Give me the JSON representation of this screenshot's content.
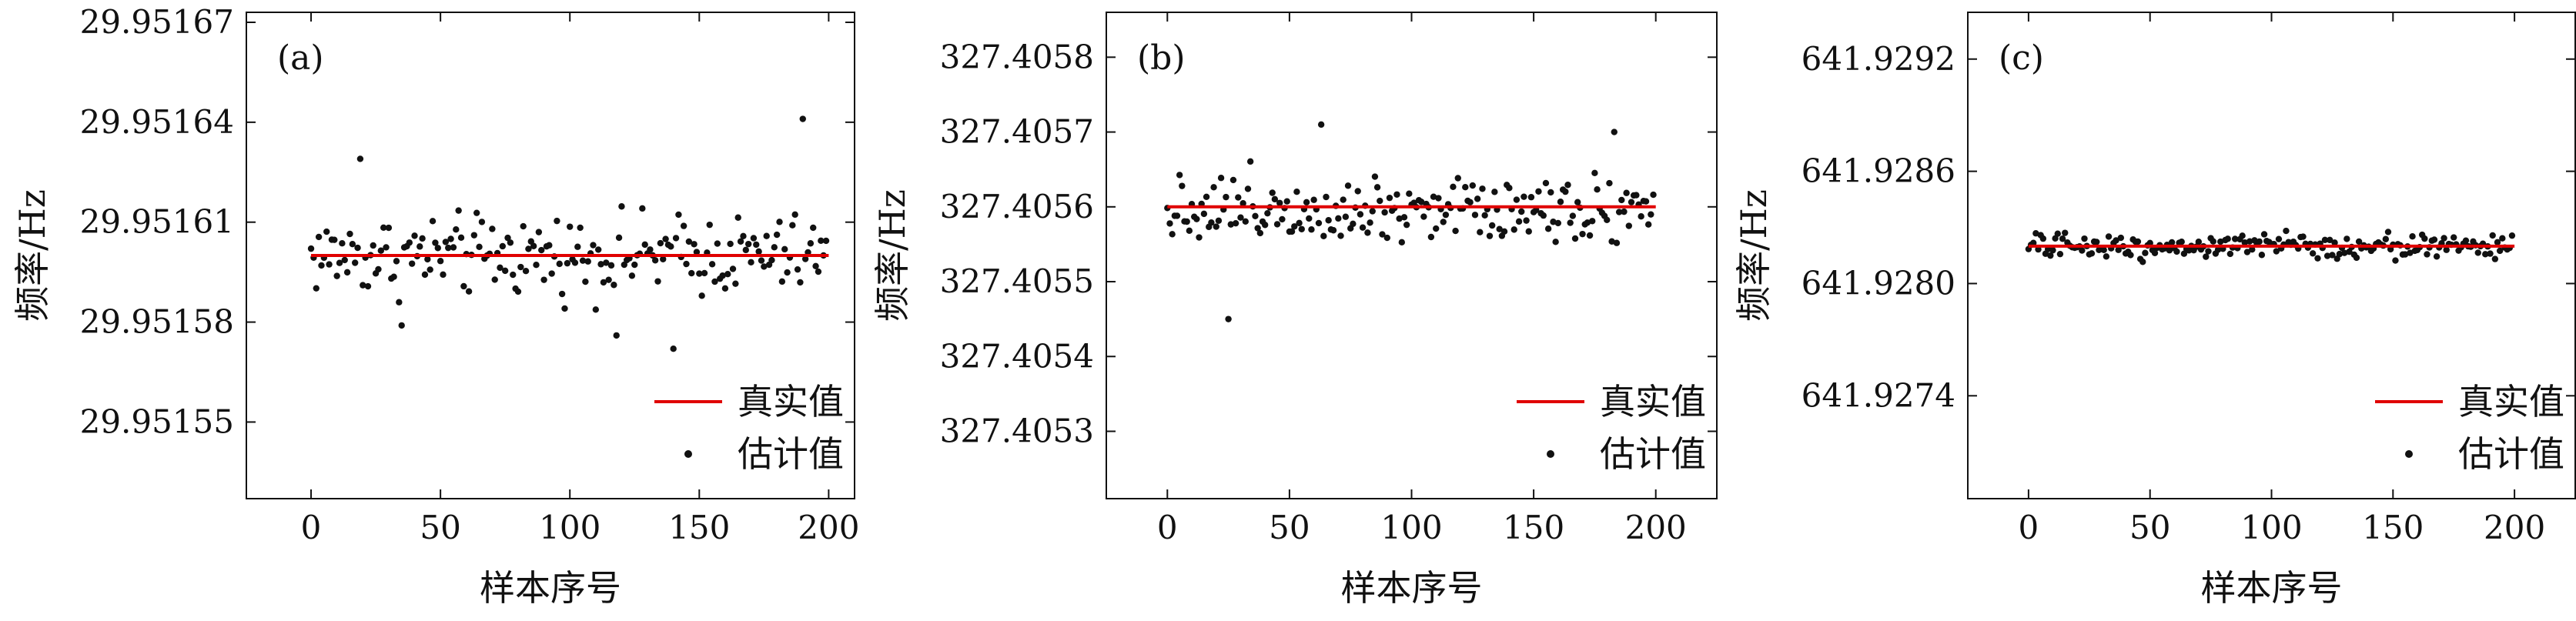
{
  "figure": {
    "xlabel": "样本序号",
    "ylabel": "频率/Hz",
    "legend": {
      "true_label": "真实值",
      "est_label": "估计值",
      "position": "lower-right"
    },
    "colors": {
      "true_line": "#e00000",
      "points": "#111111",
      "axes": "#111111"
    }
  },
  "chart_data": [
    {
      "type": "scatter",
      "panel_label": "(a)",
      "xlabel": "样本序号",
      "ylabel": "频率/Hz",
      "xlim": [
        -25,
        210
      ],
      "ylim": [
        29.951527,
        29.951673
      ],
      "xticks": [
        0,
        50,
        100,
        150,
        200
      ],
      "yticks": [
        29.95155,
        29.95158,
        29.95161,
        29.95164,
        29.95167
      ],
      "ytick_labels": [
        "29.95155",
        "29.95158",
        "29.95161",
        "29.95164",
        "29.95167"
      ],
      "true_value": 29.9516,
      "true_x_range": [
        0,
        200
      ],
      "spread": 1.8e-05,
      "outliers": [
        [
          190,
          29.951641
        ],
        [
          19,
          29.951629
        ],
        [
          140,
          29.951572
        ],
        [
          118,
          29.951576
        ],
        [
          35,
          29.951579
        ]
      ],
      "series": [
        {
          "name": "真实值",
          "kind": "line"
        },
        {
          "name": "估计值",
          "kind": "points",
          "count": 200
        }
      ],
      "legend": "lower-right",
      "grid": false
    },
    {
      "type": "scatter",
      "panel_label": "(b)",
      "xlabel": "样本序号",
      "ylabel": "频率/Hz",
      "xlim": [
        -25,
        225
      ],
      "ylim": [
        327.40521,
        327.40586
      ],
      "xticks": [
        0,
        50,
        100,
        150,
        200
      ],
      "yticks": [
        327.4053,
        327.4054,
        327.4055,
        327.4056,
        327.4057,
        327.4058
      ],
      "ytick_labels": [
        "327.4053",
        "327.4054",
        "327.4055",
        "327.4056",
        "327.4057",
        "327.4058"
      ],
      "true_value": 327.4056,
      "true_x_range": [
        0,
        200
      ],
      "spread": 7e-05,
      "outliers": [
        [
          25,
          327.40545
        ],
        [
          63,
          327.40571
        ],
        [
          183,
          327.4057
        ]
      ],
      "series": [
        {
          "name": "真实值",
          "kind": "line"
        },
        {
          "name": "估计值",
          "kind": "points",
          "count": 200
        }
      ],
      "legend": "lower-right",
      "grid": false
    },
    {
      "type": "scatter",
      "panel_label": "(c)",
      "xlabel": "样本序号",
      "ylabel": "频率/Hz",
      "xlim": [
        -25,
        225
      ],
      "ylim": [
        641.92685,
        641.92945
      ],
      "xticks": [
        0,
        50,
        100,
        150,
        200
      ],
      "yticks": [
        641.9274,
        641.928,
        641.9286,
        641.9292
      ],
      "ytick_labels": [
        "641.9274",
        "641.9280",
        "641.9286",
        "641.9292"
      ],
      "true_value": 641.9282,
      "true_x_range": [
        0,
        200
      ],
      "spread": 0.0001,
      "outliers": [],
      "series": [
        {
          "name": "真实值",
          "kind": "line"
        },
        {
          "name": "估计值",
          "kind": "points",
          "count": 200
        }
      ],
      "legend": "lower-right",
      "grid": false
    }
  ]
}
